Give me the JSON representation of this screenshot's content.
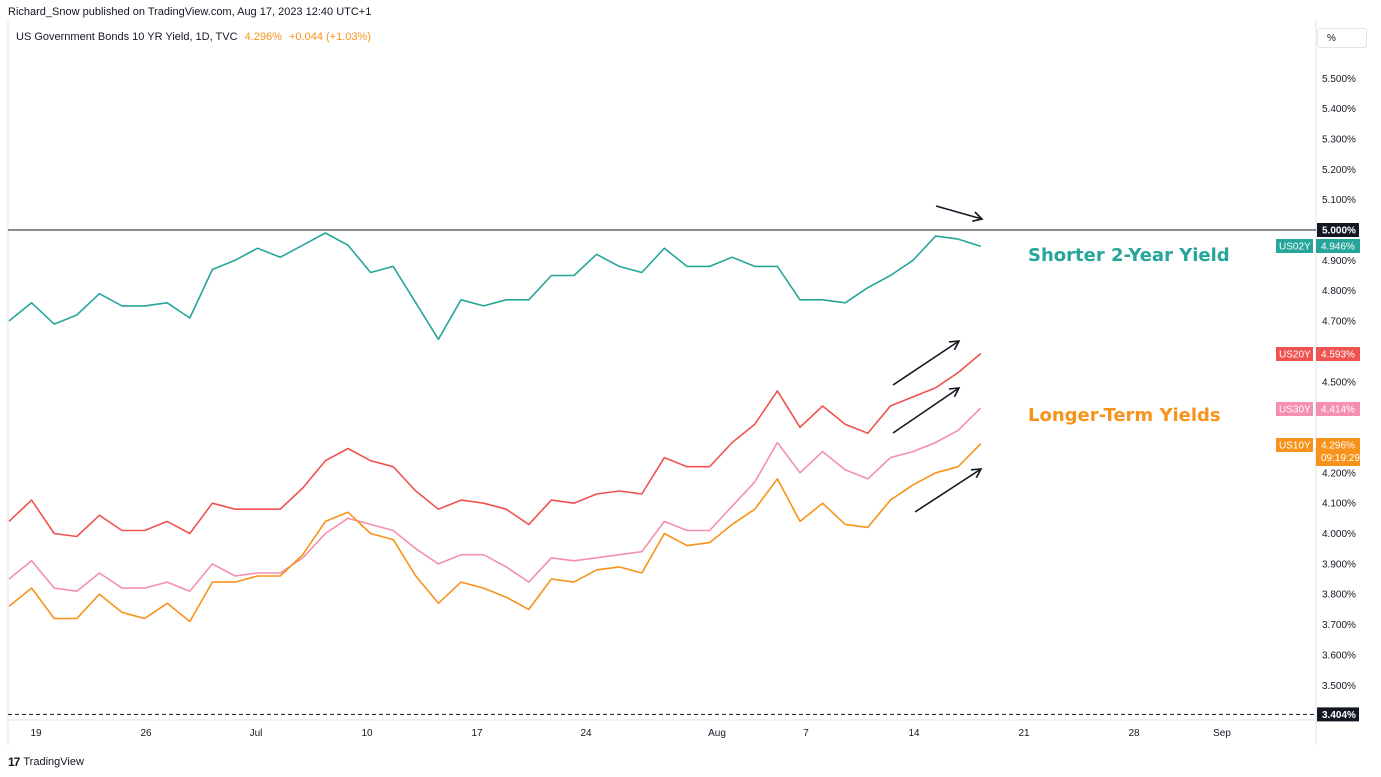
{
  "header": {
    "publisher": "Richard_Snow published on TradingView.com, Aug 17, 2023 12:40 UTC+1",
    "symbol_desc": "US Government Bonds 10 YR Yield, 1D, TVC",
    "last_price": "4.296%",
    "change": "+0.044 (+1.03%)"
  },
  "toolbar": {
    "unit_label": "%"
  },
  "footer": {
    "brand": "TradingView",
    "logo_glyph": "17"
  },
  "colors": {
    "us02y": "#26a69a",
    "us20y": "#ef5350",
    "us30y": "#f48fb1",
    "us10y": "#f7931a",
    "arrow": "#131722",
    "axis_tag_dark": "#131722"
  },
  "chart_data": {
    "type": "line",
    "title": "",
    "xlabel": "",
    "ylabel": "",
    "ylim": [
      3.404,
      5.62
    ],
    "grid": false,
    "x_tick_labels": [
      "19",
      "26",
      "Jul",
      "10",
      "17",
      "24",
      "Aug",
      "7",
      "14",
      "21",
      "28",
      "Sep"
    ],
    "y_tick_labels": [
      "3.500%",
      "3.600%",
      "3.700%",
      "3.800%",
      "3.900%",
      "4.000%",
      "4.100%",
      "4.200%",
      "4.300%",
      "4.400%",
      "4.500%",
      "4.600%",
      "4.700%",
      "4.800%",
      "4.900%",
      "5.100%",
      "5.200%",
      "5.300%",
      "5.400%",
      "5.500%"
    ],
    "x": [
      "Jun 16",
      "Jun 19",
      "Jun 20",
      "Jun 21",
      "Jun 22",
      "Jun 23",
      "Jun 26",
      "Jun 27",
      "Jun 28",
      "Jun 29",
      "Jun 30",
      "Jul 3",
      "Jul 5",
      "Jul 6",
      "Jul 7",
      "Jul 10",
      "Jul 11",
      "Jul 12",
      "Jul 13",
      "Jul 14",
      "Jul 17",
      "Jul 18",
      "Jul 19",
      "Jul 20",
      "Jul 21",
      "Jul 24",
      "Jul 25",
      "Jul 26",
      "Jul 27",
      "Jul 28",
      "Jul 31",
      "Aug 1",
      "Aug 2",
      "Aug 3",
      "Aug 4",
      "Aug 7",
      "Aug 8",
      "Aug 9",
      "Aug 10",
      "Aug 11",
      "Aug 14",
      "Aug 15",
      "Aug 16",
      "Aug 17"
    ],
    "series": [
      {
        "name": "US02Y",
        "values": [
          4.7,
          4.76,
          4.69,
          4.72,
          4.79,
          4.75,
          4.75,
          4.76,
          4.71,
          4.87,
          4.9,
          4.94,
          4.91,
          4.95,
          4.99,
          4.95,
          4.86,
          4.88,
          4.76,
          4.64,
          4.77,
          4.75,
          4.77,
          4.77,
          4.85,
          4.85,
          4.92,
          4.88,
          4.86,
          4.94,
          4.88,
          4.88,
          4.91,
          4.88,
          4.88,
          4.77,
          4.77,
          4.76,
          4.81,
          4.85,
          4.9,
          4.98,
          4.97,
          4.946
        ]
      },
      {
        "name": "US20Y",
        "values": [
          4.04,
          4.11,
          4.0,
          3.99,
          4.06,
          4.01,
          4.01,
          4.04,
          4.0,
          4.1,
          4.08,
          4.08,
          4.08,
          4.15,
          4.24,
          4.28,
          4.24,
          4.22,
          4.14,
          4.08,
          4.11,
          4.1,
          4.08,
          4.03,
          4.11,
          4.1,
          4.13,
          4.14,
          4.13,
          4.25,
          4.22,
          4.22,
          4.3,
          4.36,
          4.47,
          4.35,
          4.42,
          4.36,
          4.33,
          4.42,
          4.45,
          4.48,
          4.53,
          4.593
        ]
      },
      {
        "name": "US30Y",
        "values": [
          3.85,
          3.91,
          3.82,
          3.81,
          3.87,
          3.82,
          3.82,
          3.84,
          3.81,
          3.9,
          3.86,
          3.87,
          3.87,
          3.92,
          4.0,
          4.05,
          4.03,
          4.01,
          3.95,
          3.9,
          3.93,
          3.93,
          3.89,
          3.84,
          3.92,
          3.91,
          3.92,
          3.93,
          3.94,
          4.04,
          4.01,
          4.01,
          4.09,
          4.17,
          4.3,
          4.2,
          4.27,
          4.21,
          4.18,
          4.25,
          4.27,
          4.3,
          4.34,
          4.414
        ]
      },
      {
        "name": "US10Y",
        "values": [
          3.76,
          3.82,
          3.72,
          3.72,
          3.8,
          3.74,
          3.72,
          3.77,
          3.71,
          3.84,
          3.84,
          3.86,
          3.86,
          3.93,
          4.04,
          4.07,
          4.0,
          3.98,
          3.86,
          3.77,
          3.84,
          3.82,
          3.79,
          3.75,
          3.85,
          3.84,
          3.88,
          3.89,
          3.87,
          4.0,
          3.96,
          3.97,
          4.03,
          4.08,
          4.18,
          4.04,
          4.1,
          4.03,
          4.02,
          4.11,
          4.16,
          4.2,
          4.22,
          4.296
        ]
      }
    ],
    "price_tags": [
      {
        "symbol": "US02Y",
        "value": "4.946%"
      },
      {
        "symbol": "US20Y",
        "value": "4.593%"
      },
      {
        "symbol": "US30Y",
        "value": "4.414%"
      },
      {
        "symbol": "US10Y",
        "value": "4.296%",
        "countdown": "09:19:29"
      }
    ],
    "horizontal_lines": [
      {
        "value": 5.0,
        "label": "5.000%",
        "style": "solid"
      },
      {
        "value": 3.404,
        "label": "3.404%",
        "style": "dashed"
      }
    ],
    "annotations": [
      {
        "text": "Shorter 2-Year Yield",
        "color": "#26a69a"
      },
      {
        "text": "Longer-Term Yields",
        "color": "#f7931a"
      }
    ]
  }
}
